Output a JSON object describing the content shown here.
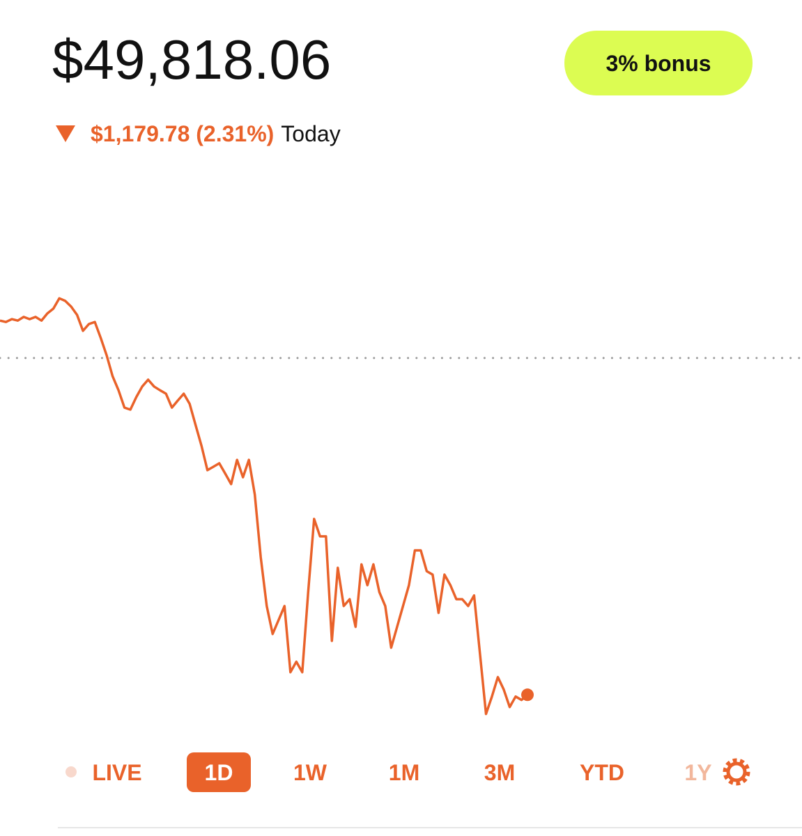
{
  "balance": "$49,818.06",
  "bonus_button": "3% bonus",
  "change": {
    "amount": "$1,179.78 (2.31%)",
    "period": "Today"
  },
  "chart_data": {
    "type": "line",
    "color": "#e9622a",
    "values": [
      51129,
      51124,
      51134,
      51129,
      51142,
      51134,
      51142,
      51129,
      51154,
      51171,
      51207,
      51198,
      51178,
      51149,
      51093,
      51117,
      51124,
      51068,
      51007,
      50934,
      50885,
      50824,
      50817,
      50861,
      50898,
      50922,
      50898,
      50885,
      50873,
      50824,
      50849,
      50873,
      50837,
      50763,
      50690,
      50605,
      50617,
      50629,
      50593,
      50556,
      50641,
      50580,
      50641,
      50519,
      50300,
      50129,
      50031,
      50080,
      50129,
      49897,
      49934,
      49897,
      50178,
      50434,
      50373,
      50373,
      50007,
      50263,
      50129,
      50153,
      50056,
      50275,
      50202,
      50275,
      50178,
      50129,
      49983,
      50056,
      50129,
      50202,
      50324,
      50324,
      50251,
      50239,
      50105,
      50239,
      50202,
      50153,
      50153,
      50129,
      50166,
      49958,
      49751,
      49812,
      49880,
      49836,
      49775,
      49812,
      49800,
      49818.06
    ],
    "ylim": [
      49665,
      51642
    ],
    "baseline": 50998
  },
  "ranges": [
    "LIVE",
    "1D",
    "1W",
    "1M",
    "3M",
    "YTD",
    "1Y"
  ],
  "selected_range": "1D"
}
